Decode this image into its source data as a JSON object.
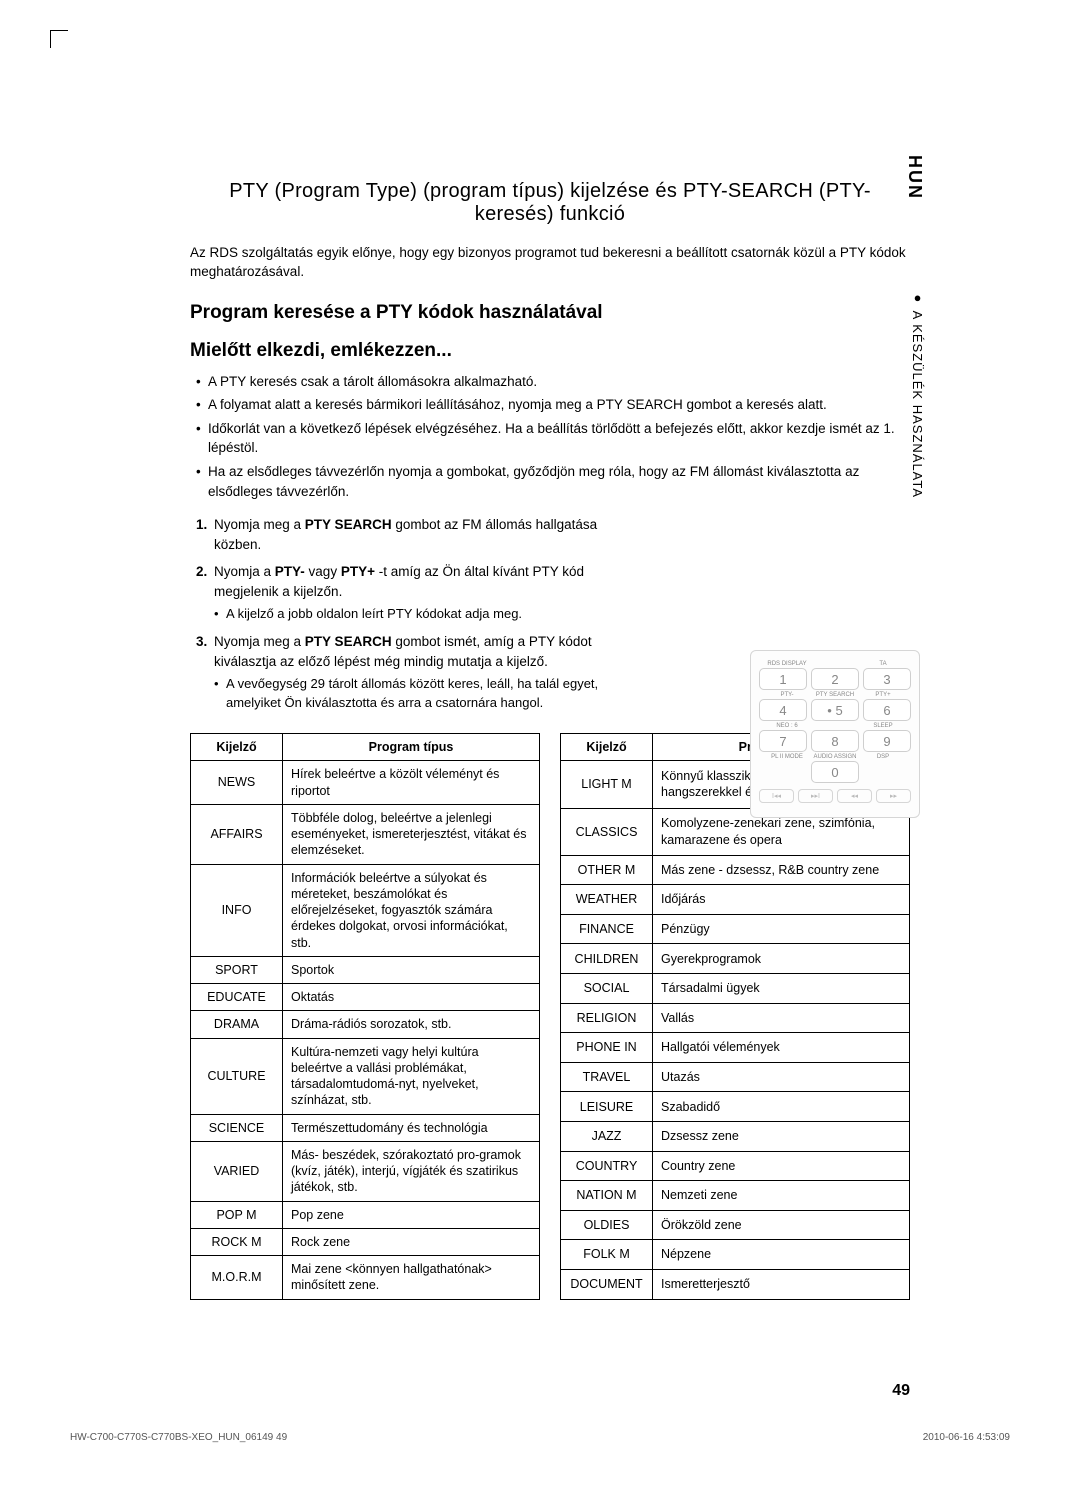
{
  "sideTab": "HUN",
  "sideLabel": "A KÉSZÜLÉK HASZNÁLATA",
  "title": "PTY (Program Type) (program típus) kijelzése és PTY-SEARCH  (PTY-keresés) funkció",
  "intro": "Az RDS szolgáltatás egyik előnye, hogy egy bizonyos programot tud bekeresni a beállított csatornák közül a PTY kódok meghatározásával.",
  "h2": "Program keresése a PTY kódok használatával",
  "h3": "Mielőtt elkezdi, emlékezzen...",
  "bullets": [
    "A PTY keresés csak a tárolt állomásokra alkalmazható.",
    "A folyamat alatt a keresés bármikori leállításához, nyomja meg a PTY SEARCH gombot a keresés alatt.",
    "Időkorlát van a következő lépések elvégzéséhez. Ha a beállítás törlődött a befejezés előtt, akkor kezdje ismét az 1. lépéstöl.",
    "Ha az elsődleges távvezérlőn nyomja a gombokat, győződjön meg róla, hogy az FM állomást kiválasztotta az elsődleges távvezérlőn."
  ],
  "steps": [
    {
      "num": "1.",
      "html": "Nyomja meg a <b>PTY SEARCH</b> gombot az FM állomás hallgatása közben."
    },
    {
      "num": "2.",
      "html": "Nyomja a <b>PTY-</b> vagy <b>PTY+</b> -t amíg az Ön által kívánt PTY kód megjelenik a kijelzőn.",
      "sub": "A kijelző a jobb oldalon leírt PTY kódokat adja meg."
    },
    {
      "num": "3.",
      "html": "Nyomja meg a <b>PTY SEARCH</b> gombot ismét, amíg a PTY kódot kiválasztja az előző lépést még mindig mutatja a kijelző.",
      "sub": "A vevőegység 29 tárolt állomás között keres, leáll, ha talál egyet, amelyiket Ön  kiválasztotta és arra a csatornára hangol."
    }
  ],
  "keypad": {
    "row1Labels": [
      "RDS DISPLAY",
      "",
      "TA"
    ],
    "row1": [
      "1",
      "2",
      "3"
    ],
    "row2Labels": [
      "PTY-",
      "PTY SEARCH",
      "PTY+"
    ],
    "row2": [
      "4",
      "• 5",
      "6"
    ],
    "row3Labels": [
      "NEO : 6",
      "",
      "SLEEP"
    ],
    "row3": [
      "7",
      "8",
      "9"
    ],
    "row4Labels": [
      "PL II MODE",
      "AUDIO ASSIGN",
      "DSP"
    ],
    "row4": [
      "",
      "0",
      ""
    ],
    "bottom": [
      "I◂◂",
      "▸▸I",
      "◂◂",
      "▸▸"
    ]
  },
  "tableHeaders": {
    "col1": "Kijelző",
    "col2": "Program típus"
  },
  "table1": [
    [
      "NEWS",
      "Hírek beleértve a közölt véleményt és riportot"
    ],
    [
      "AFFAIRS",
      "Többféle dolog, beleértve a jelenlegi eseményeket, ismereterjesztést, vitákat és elemzéseket."
    ],
    [
      "INFO",
      "Információk beleértve a súlyokat és méreteket, beszámolókat és előrejelzéseket, fogyasztók számára érdekes dolgokat, orvosi információkat, stb."
    ],
    [
      "SPORT",
      "Sportok"
    ],
    [
      "EDUCATE",
      "Oktatás"
    ],
    [
      "DRAMA",
      "Dráma-rádiós sorozatok, stb."
    ],
    [
      "CULTURE",
      "Kultúra-nemzeti vagy helyi kultúra beleértve a vallási problémákat, társadalomtudomá-nyt, nyelveket, színházat, stb."
    ],
    [
      "SCIENCE",
      "Természettudomány és technológia"
    ],
    [
      "VARIED",
      "Más- beszédek, szórakoztató pro-gramok (kvíz, játék), interjú, vígjáték és szatirikus játékok, stb."
    ],
    [
      "POP M",
      "Pop zene"
    ],
    [
      "ROCK M",
      "Rock zene"
    ],
    [
      "M.O.R.M",
      "Mai zene <könnyen hallgathatónak> minősített zene."
    ]
  ],
  "table2": [
    [
      "LIGHT M",
      "Könnyű klasszikus zene- klasszikus zene, hangszerekkel és kórus zene"
    ],
    [
      "CLASSICS",
      "Komolyzene-zenekari zene, szimfónia, kamarazene és opera"
    ],
    [
      "OTHER M",
      "Más zene - dzsessz, R&B country zene"
    ],
    [
      "WEATHER",
      "Időjárás"
    ],
    [
      "FINANCE",
      "Pénzügy"
    ],
    [
      "CHILDREN",
      "Gyerekprogramok"
    ],
    [
      "SOCIAL",
      "Társadalmi ügyek"
    ],
    [
      "RELIGION",
      "Vallás"
    ],
    [
      "PHONE IN",
      "Hallgatói vélemények"
    ],
    [
      "TRAVEL",
      "Utazás"
    ],
    [
      "LEISURE",
      "Szabadidő"
    ],
    [
      "JAZZ",
      "Dzsessz zene"
    ],
    [
      "COUNTRY",
      "Country zene"
    ],
    [
      "NATION M",
      "Nemzeti zene"
    ],
    [
      "OLDIES",
      "Örökzöld zene"
    ],
    [
      "FOLK M",
      "Népzene"
    ],
    [
      "DOCUMENT",
      "Ismeretterjesztő"
    ]
  ],
  "pageNum": "49",
  "footerLeft": "HW-C700-C770S-C770BS-XEO_HUN_06149   49",
  "footerRight": "2010-06-16   4:53:09"
}
